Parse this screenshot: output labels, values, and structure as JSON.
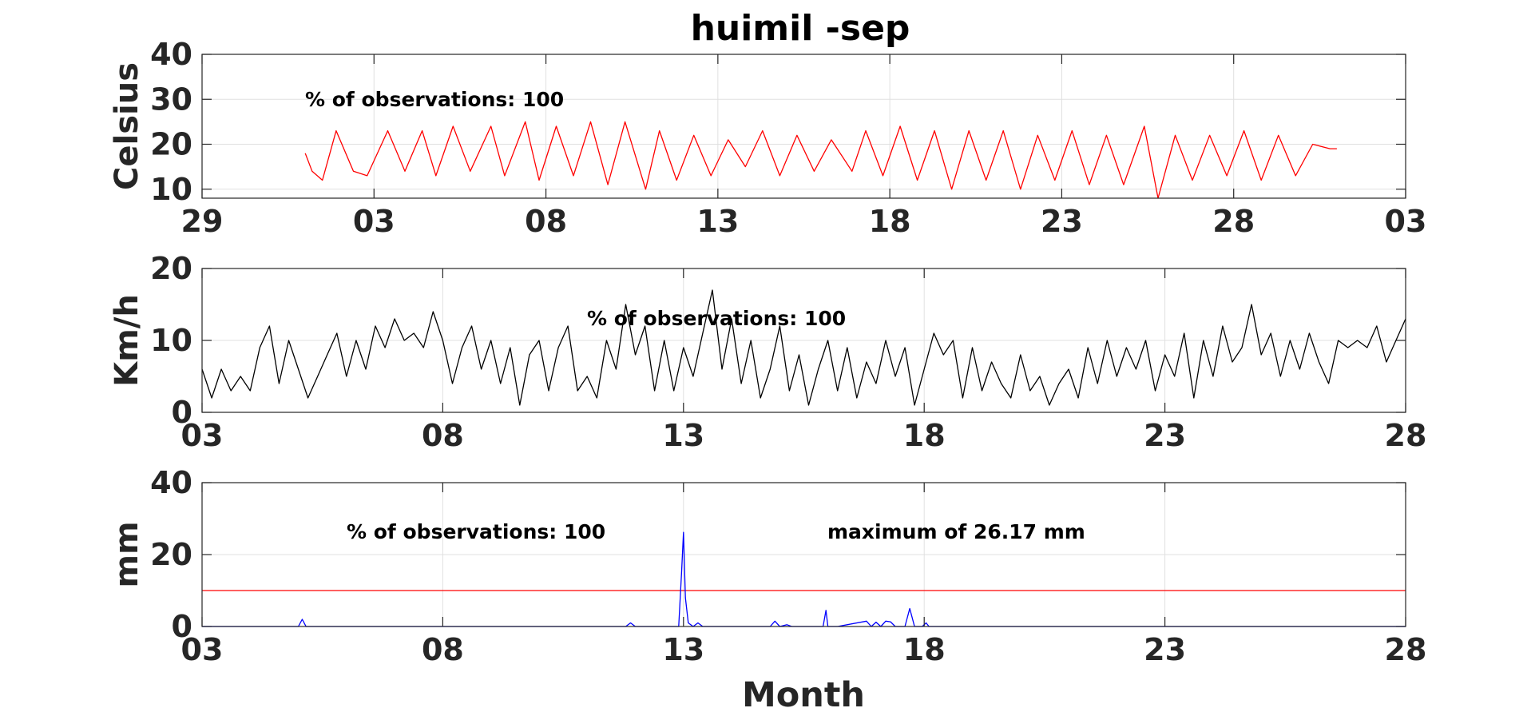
{
  "figure": {
    "title": "huimil -sep",
    "xlabel": "Month"
  },
  "colors": {
    "temperature": "#ff0000",
    "wind": "#000000",
    "precipitation": "#0000ff",
    "threshold": "#ff0000",
    "axis": "#262626",
    "grid": "#e0e0e0"
  },
  "chart_data": [
    {
      "type": "line",
      "title": "huimil -sep",
      "ylabel": "Celsius",
      "ylim": [
        8,
        40
      ],
      "yticks": [
        10,
        20,
        30,
        40
      ],
      "xlim": [
        0,
        35
      ],
      "xtick_pos": [
        0,
        5,
        10,
        15,
        20,
        25,
        30,
        35
      ],
      "xtick_labels": [
        "29",
        "03",
        "08",
        "13",
        "18",
        "23",
        "28",
        "03"
      ],
      "grid": true,
      "annotations": [
        "% of observations: 100"
      ],
      "series": [
        {
          "color": "#ff0000",
          "x": [
            3.0,
            3.2,
            3.5,
            3.9,
            4.4,
            4.8,
            5.4,
            5.9,
            6.4,
            6.8,
            7.3,
            7.8,
            8.4,
            8.8,
            9.4,
            9.8,
            10.3,
            10.8,
            11.3,
            11.8,
            12.3,
            12.9,
            13.3,
            13.8,
            14.3,
            14.8,
            15.3,
            15.8,
            16.3,
            16.8,
            17.3,
            17.8,
            18.3,
            18.9,
            19.3,
            19.8,
            20.3,
            20.8,
            21.3,
            21.8,
            22.3,
            22.8,
            23.3,
            23.8,
            24.3,
            24.8,
            25.3,
            25.8,
            26.3,
            26.8,
            27.4,
            27.8,
            28.3,
            28.8,
            29.3,
            29.8,
            30.3,
            30.8,
            31.3,
            31.8,
            32.3,
            32.8,
            33.0
          ],
          "y": [
            18,
            14,
            12,
            23,
            14,
            13,
            23,
            14,
            23,
            13,
            24,
            14,
            24,
            13,
            25,
            12,
            24,
            13,
            25,
            11,
            25,
            10,
            23,
            12,
            22,
            13,
            21,
            15,
            23,
            13,
            22,
            14,
            21,
            14,
            23,
            13,
            24,
            12,
            23,
            10,
            23,
            12,
            23,
            10,
            22,
            12,
            23,
            11,
            22,
            11,
            24,
            8,
            22,
            12,
            22,
            13,
            23,
            12,
            22,
            13,
            20,
            19,
            19
          ]
        }
      ]
    },
    {
      "type": "line",
      "ylabel": "Km/h",
      "ylim": [
        0,
        20
      ],
      "yticks": [
        0,
        10,
        20
      ],
      "xlim": [
        0,
        25
      ],
      "xtick_pos": [
        0,
        5,
        10,
        15,
        20,
        25
      ],
      "xtick_labels": [
        "03",
        "08",
        "13",
        "18",
        "23",
        "28"
      ],
      "grid": true,
      "annotations": [
        "% of observations: 100"
      ],
      "series": [
        {
          "color": "#000000",
          "x": [
            0.0,
            0.2,
            0.4,
            0.6,
            0.8,
            1.0,
            1.2,
            1.4,
            1.6,
            1.8,
            2.0,
            2.2,
            2.4,
            2.6,
            2.8,
            3.0,
            3.2,
            3.4,
            3.6,
            3.8,
            4.0,
            4.2,
            4.4,
            4.6,
            4.8,
            5.0,
            5.2,
            5.4,
            5.6,
            5.8,
            6.0,
            6.2,
            6.4,
            6.6,
            6.8,
            7.0,
            7.2,
            7.4,
            7.6,
            7.8,
            8.0,
            8.2,
            8.4,
            8.6,
            8.8,
            9.0,
            9.2,
            9.4,
            9.6,
            9.8,
            10.0,
            10.2,
            10.4,
            10.6,
            10.8,
            11.0,
            11.2,
            11.4,
            11.6,
            11.8,
            12.0,
            12.2,
            12.4,
            12.6,
            12.8,
            13.0,
            13.2,
            13.4,
            13.6,
            13.8,
            14.0,
            14.2,
            14.4,
            14.6,
            14.8,
            15.0,
            15.2,
            15.4,
            15.6,
            15.8,
            16.0,
            16.2,
            16.4,
            16.6,
            16.8,
            17.0,
            17.2,
            17.4,
            17.6,
            17.8,
            18.0,
            18.2,
            18.4,
            18.6,
            18.8,
            19.0,
            19.2,
            19.4,
            19.6,
            19.8,
            20.0,
            20.2,
            20.4,
            20.6,
            20.8,
            21.0,
            21.2,
            21.4,
            21.6,
            21.8,
            22.0,
            22.2,
            22.4,
            22.6,
            22.8,
            23.0,
            23.2,
            23.4,
            23.6,
            23.8,
            24.0,
            24.2,
            24.4,
            24.6,
            24.8,
            25.0
          ],
          "y": [
            6,
            2,
            6,
            3,
            5,
            3,
            9,
            12,
            4,
            10,
            6,
            2,
            5,
            8,
            11,
            5,
            10,
            6,
            12,
            9,
            13,
            10,
            11,
            9,
            14,
            10,
            4,
            9,
            12,
            6,
            10,
            4,
            9,
            1,
            8,
            10,
            3,
            9,
            12,
            3,
            5,
            2,
            10,
            6,
            15,
            8,
            12,
            3,
            10,
            3,
            9,
            5,
            11,
            17,
            6,
            13,
            4,
            10,
            2,
            6,
            12,
            3,
            8,
            1,
            6,
            10,
            3,
            9,
            2,
            7,
            4,
            10,
            5,
            9,
            1,
            6,
            11,
            8,
            10,
            2,
            9,
            3,
            7,
            4,
            2,
            8,
            3,
            5,
            1,
            4,
            6,
            2,
            9,
            4,
            10,
            5,
            9,
            6,
            10,
            3,
            8,
            5,
            11,
            2,
            10,
            5,
            12,
            7,
            9,
            15,
            8,
            11,
            5,
            10,
            6,
            11,
            7,
            4,
            10,
            9,
            10,
            9,
            12,
            7,
            10,
            13
          ]
        }
      ]
    },
    {
      "type": "line",
      "ylabel": "mm",
      "xlabel": "Month",
      "ylim": [
        0,
        40
      ],
      "yticks": [
        0,
        20,
        40
      ],
      "xlim": [
        0,
        25
      ],
      "xtick_pos": [
        0,
        5,
        10,
        15,
        20,
        25
      ],
      "xtick_labels": [
        "03",
        "08",
        "13",
        "18",
        "23",
        "28"
      ],
      "grid": true,
      "annotations": [
        "% of observations: 100",
        "maximum of 26.17 mm"
      ],
      "threshold": 10,
      "series": [
        {
          "color": "#0000ff",
          "x": [
            0.0,
            2.0,
            2.08,
            2.16,
            2.24,
            8.8,
            8.9,
            9.0,
            9.1,
            9.9,
            9.96,
            10.0,
            10.04,
            10.1,
            10.2,
            10.3,
            10.4,
            11.8,
            11.9,
            12.0,
            12.15,
            12.25,
            12.4,
            12.9,
            12.96,
            13.0,
            13.06,
            13.2,
            13.8,
            13.9,
            14.0,
            14.1,
            14.2,
            14.3,
            14.4,
            14.5,
            14.6,
            14.7,
            14.8,
            14.9,
            14.96,
            15.04,
            15.1,
            15.2,
            15.3,
            15.4,
            25.0
          ],
          "y": [
            0,
            0,
            2,
            0,
            0,
            0,
            1,
            0,
            0,
            0,
            15,
            26.17,
            8,
            1,
            0,
            1,
            0,
            0,
            1.5,
            0,
            0.5,
            0,
            0,
            0,
            4.5,
            0,
            0,
            0,
            1.5,
            0,
            1.2,
            0,
            1.5,
            1.3,
            0,
            0,
            0,
            5,
            0,
            0,
            0,
            1,
            0,
            0,
            0,
            0,
            0
          ]
        }
      ]
    }
  ]
}
